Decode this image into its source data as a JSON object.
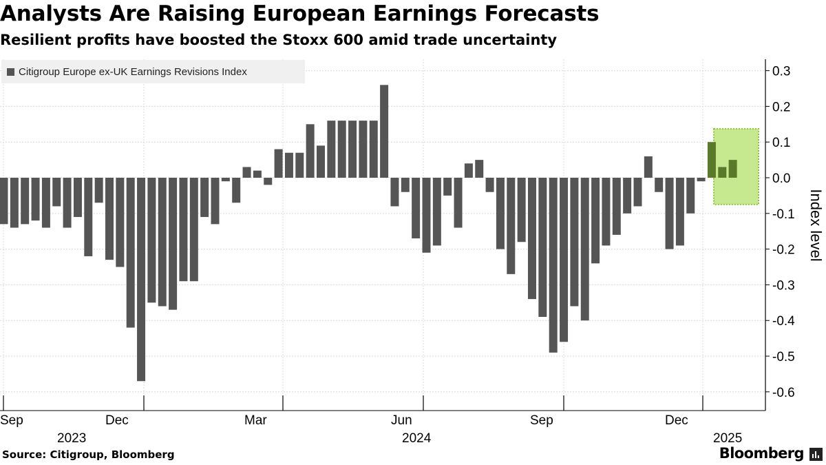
{
  "title": "Analysts Are Raising European Earnings Forecasts",
  "subtitle": "Resilient profits have boosted the Stoxx 600 amid trade uncertainty",
  "source": "Source: Citigroup, Bloomberg",
  "brand": "Bloomberg",
  "colors": {
    "bar": "#555555",
    "highlight_fill": "#c6e88f",
    "highlight_bar": "#5a7a2a",
    "highlight_border": "#8ec63f"
  },
  "chart_data": {
    "type": "bar",
    "ylabel": "Index level",
    "ylim": [
      -0.65,
      0.33
    ],
    "y_ticks": [
      0.3,
      0.2,
      0.1,
      0.0,
      -0.1,
      -0.2,
      -0.3,
      -0.4,
      -0.5,
      -0.6
    ],
    "y_tick_labels": [
      "0.3",
      "0.2",
      "0.1",
      "0.0",
      "-0.1",
      "-0.2",
      "-0.3",
      "-0.4",
      "-0.5",
      "-0.6"
    ],
    "x_tick_labels": [
      "Sep",
      "Dec",
      "Mar",
      "Jun",
      "Sep",
      "Dec"
    ],
    "x_year_labels": [
      "2023",
      "2024",
      "2025"
    ],
    "grid": true,
    "legend": {
      "position": "top-left",
      "entries": [
        "Citigroup Europe ex-UK Earnings Revisions Index"
      ]
    },
    "series": [
      {
        "name": "Citigroup Europe ex-UK Earnings Revisions Index",
        "values": [
          -0.13,
          -0.14,
          -0.13,
          -0.12,
          -0.14,
          -0.08,
          -0.14,
          -0.11,
          -0.22,
          -0.07,
          -0.23,
          -0.25,
          -0.42,
          -0.57,
          -0.35,
          -0.36,
          -0.37,
          -0.29,
          -0.29,
          -0.11,
          -0.13,
          -0.01,
          -0.07,
          0.03,
          0.02,
          -0.02,
          0.08,
          0.07,
          0.07,
          0.15,
          0.09,
          0.16,
          0.16,
          0.16,
          0.16,
          0.16,
          0.26,
          -0.08,
          -0.04,
          -0.17,
          -0.21,
          -0.19,
          -0.05,
          -0.14,
          0.04,
          0.05,
          -0.04,
          -0.2,
          -0.27,
          -0.18,
          -0.34,
          -0.39,
          -0.49,
          -0.46,
          -0.36,
          -0.4,
          -0.24,
          -0.19,
          -0.16,
          -0.1,
          -0.08,
          0.06,
          -0.04,
          -0.2,
          -0.19,
          -0.1,
          -0.01,
          0.1,
          0.03,
          0.05
        ]
      }
    ],
    "annotations": [
      {
        "type": "highlight-box",
        "covers_last_n_bars": 3,
        "y_range": [
          -0.075,
          0.137
        ]
      }
    ]
  }
}
